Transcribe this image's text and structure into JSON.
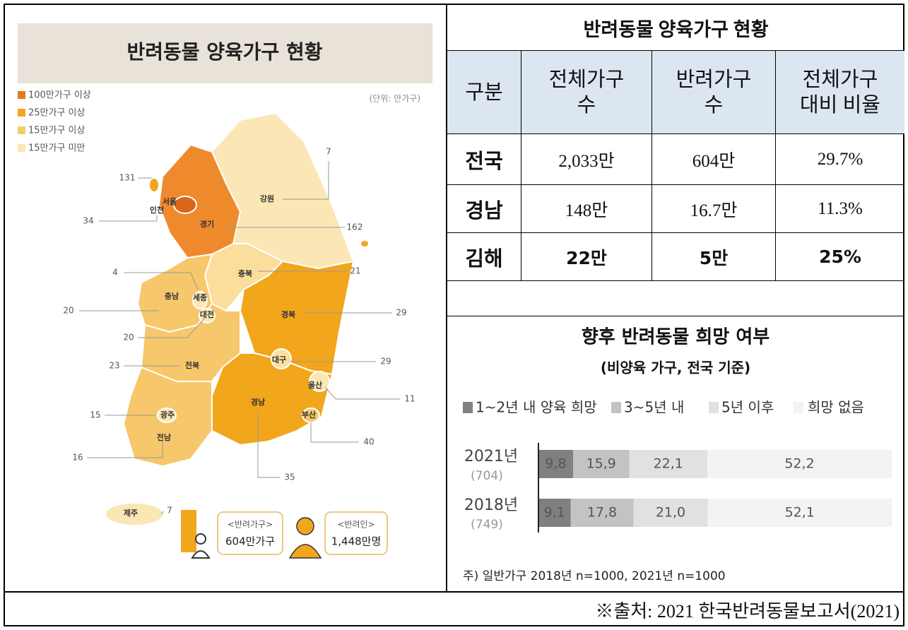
{
  "map": {
    "title": "반려동물 양육가구 현황",
    "unit": "(단위: 만가구)",
    "legend": [
      "100만가구 이상",
      "25만가구 이상",
      "15만가구 이상",
      "15만가구 미만"
    ],
    "region_labels": [
      "서울",
      "인천",
      "경기",
      "강원",
      "충북",
      "세종",
      "충남",
      "대전",
      "경북",
      "대구",
      "울산",
      "전북",
      "경남",
      "부산",
      "광주",
      "전남",
      "제주"
    ],
    "callout_values": [
      7,
      131,
      34,
      162,
      4,
      21,
      20,
      29,
      20,
      29,
      23,
      11,
      15,
      40,
      16,
      35,
      7
    ],
    "summary": [
      {
        "label": "<반려가구>",
        "value": "604만가구"
      },
      {
        "label": "<반려인>",
        "value": "1,448만명"
      }
    ]
  },
  "table": {
    "title": "반려동물 양육가구 현황",
    "header": [
      "구분",
      "전체가구 수",
      "반려가구 수",
      "전체가구 대비 비율"
    ],
    "rows": [
      [
        "전국",
        "2,033만",
        "604만",
        "29.7%"
      ],
      [
        "경남",
        "148만",
        "16.7만",
        "11.3%"
      ],
      [
        "김해",
        "22만",
        "5만",
        "25%"
      ]
    ]
  },
  "chart_data": {
    "type": "bar",
    "orientation": "horizontal",
    "stacked": true,
    "title": "향후 반려동물 희망 여부",
    "subtitle": "(비양육 가구, 전국 기준)",
    "categories": [
      "2021년",
      "2018년"
    ],
    "sample_labels": [
      "(704)",
      "(749)"
    ],
    "series": [
      {
        "name": "1~2년 내 양육 희망",
        "color": "#808080",
        "values": [
          9.8,
          9.1
        ],
        "value_labels": [
          "9,8",
          "9,1"
        ]
      },
      {
        "name": "3~5년 내",
        "color": "#c3c3c3",
        "values": [
          15.9,
          17.8
        ],
        "value_labels": [
          "15,9",
          "17,8"
        ]
      },
      {
        "name": "5년 이후",
        "color": "#e1e1e1",
        "values": [
          22.1,
          21.0
        ],
        "value_labels": [
          "22,1",
          "21,0"
        ]
      },
      {
        "name": "희망 없음",
        "color": "#f3f3f3",
        "values": [
          52.2,
          52.1
        ],
        "value_labels": [
          "52,2",
          "52,1"
        ]
      }
    ],
    "xlim": [
      0,
      100
    ],
    "note": "주) 일반가구 2018년 n=1000, 2021년 n=1000"
  },
  "source": "※출처: 2021 한국반려동물보고서(2021)"
}
